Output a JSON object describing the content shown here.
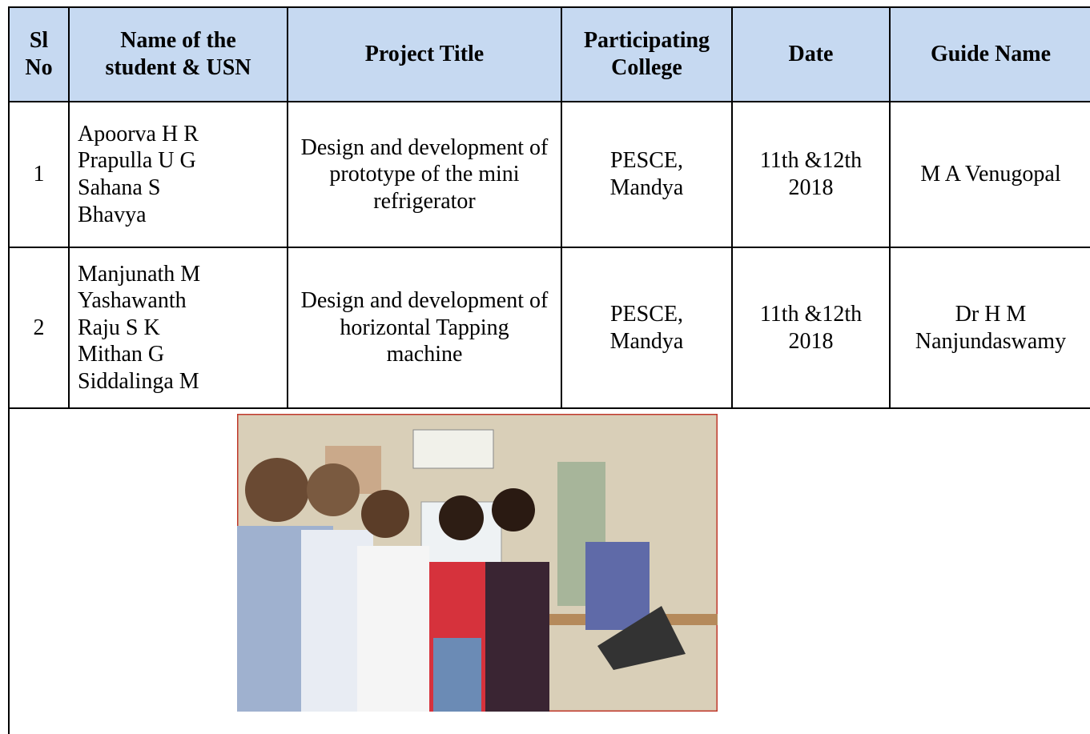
{
  "table": {
    "header": [
      "Sl No",
      "Name of the student & USN",
      "Project Title",
      "Participating College",
      "Date",
      "Guide Name"
    ],
    "rows": [
      [
        "1",
        [
          "Apoorva H R",
          "Prapulla U G",
          "Sahana S",
          "Bhavya"
        ],
        "Design  and development of prototype of the  mini refrigerator",
        "PESCE, Mandya",
        "11th &12th 2018",
        "M A Venugopal"
      ],
      [
        "2",
        [
          "Manjunath M",
          "Yashawanth",
          "Raju S K",
          "Mithan G",
          "Siddalinga M"
        ],
        "Design  and development of horizontal Tapping machine",
        "PESCE, Mandya",
        "11th &12th 2018",
        "Dr H M Nanjundaswamy"
      ]
    ]
  }
}
